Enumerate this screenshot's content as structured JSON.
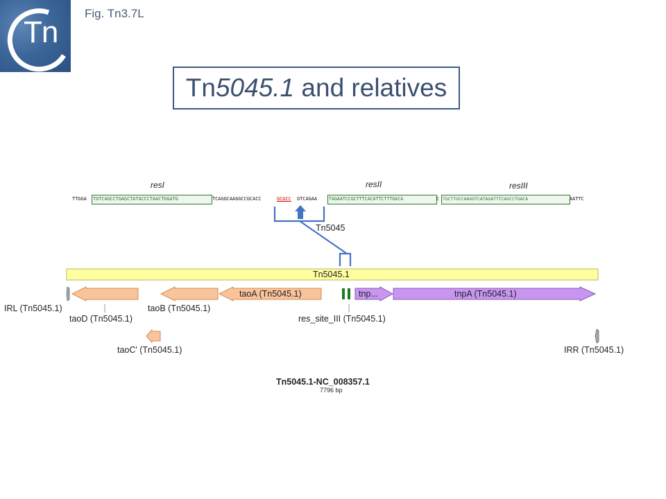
{
  "figure": {
    "label": "Fig. Tn3.7L",
    "logo_text": "Tn"
  },
  "title": {
    "main": "Tn",
    "italic": "5045.1",
    "rest": " and relatives"
  },
  "sequence": {
    "pre": "TTGGA",
    "resI_seq": "TGTCAGCCTGAGCTATACCCTAACTGGATG",
    "mid1": "TCAGGCAAGGCCGCACC",
    "target": "GCGCC",
    "mid2": " GTCAGAA",
    "resII_seq": "TAGAATCCGCTTTCACATTCTTTGACA",
    "mid3": "C",
    "resIII_seq": "TGCTTGCCAAGGTCATAGATTTCAGCCTGACA",
    "post": "AATTC"
  },
  "sites": {
    "resI": "resI",
    "resII": "resII",
    "resIII": "resIII"
  },
  "insertion_label": "Tn5045",
  "map": {
    "element_bar": "Tn5045.1",
    "features": {
      "taoD_arrow": "",
      "taoB_arrow": "",
      "taoA_arrow": "taoA (Tn5045.1)",
      "tnp_short": "tnp...",
      "tnpA_arrow": "tnpA (Tn5045.1)"
    },
    "labels": {
      "irl": "IRL (Tn5045.1)",
      "taoD": "taoD (Tn5045.1)",
      "taoB": "taoB (Tn5045.1)",
      "taoC": "taoC' (Tn5045.1)",
      "res_site": "res_site_III (Tn5045.1)",
      "irr": "IRR (Tn5045.1)"
    },
    "accession": "Tn5045.1-NC_008357.1",
    "length": "7796 bp"
  },
  "colors": {
    "tao_fill": "#f9c49b",
    "tnp_fill": "#c896f0",
    "bar_fill": "#ffffa0",
    "res_site": "#1e7a1e",
    "bracket": "#4472c4",
    "target_red": "#cc0000"
  }
}
